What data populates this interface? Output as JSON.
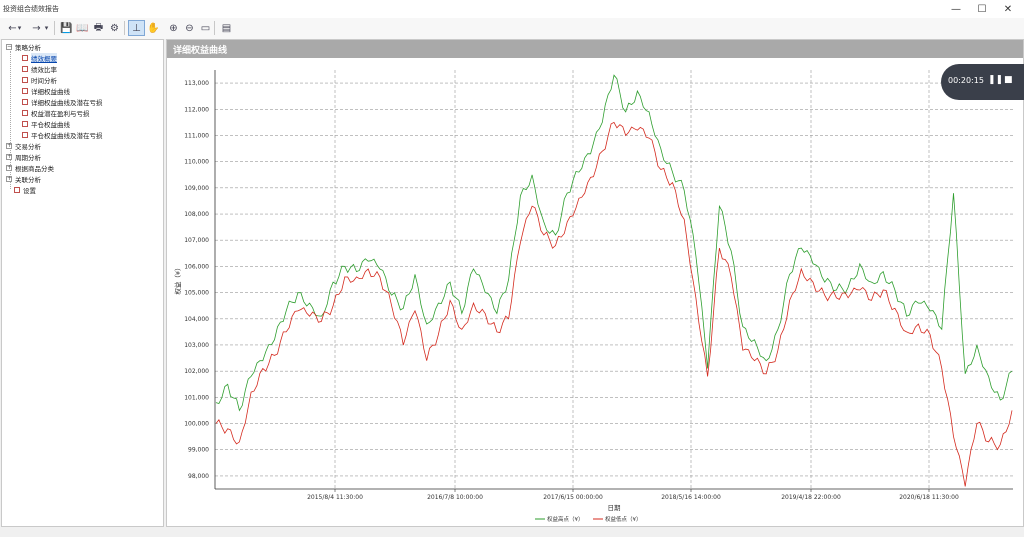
{
  "window": {
    "title": "投资组合绩效报告"
  },
  "titlebar_controls": {
    "minimize": "—",
    "maximize": "☐",
    "close": "✕"
  },
  "toolbar": [
    {
      "name": "back-icon",
      "glyph": "←"
    },
    {
      "name": "back-dropdown-icon",
      "glyph": "▾"
    },
    {
      "name": "forward-icon",
      "glyph": "→"
    },
    {
      "name": "forward-dropdown-icon",
      "glyph": "▾"
    },
    {
      "name": "save-icon",
      "glyph": "💾"
    },
    {
      "name": "open-icon",
      "glyph": "📖"
    },
    {
      "name": "print-icon",
      "glyph": "🖶"
    },
    {
      "name": "settings-icon",
      "glyph": "⚙"
    },
    {
      "name": "cursor-crosshair-icon",
      "glyph": "⊥",
      "active": true
    },
    {
      "name": "pan-hand-icon",
      "glyph": "✋"
    },
    {
      "name": "zoom-in-icon",
      "glyph": "⊕"
    },
    {
      "name": "zoom-out-icon",
      "glyph": "⊖"
    },
    {
      "name": "fit-page-icon",
      "glyph": "▭"
    },
    {
      "name": "export-image-icon",
      "glyph": "▤"
    }
  ],
  "tree": [
    {
      "label": "策略分析",
      "level": 0,
      "type": "group",
      "expanded": true
    },
    {
      "label": "绩效概要",
      "level": 1,
      "type": "doc",
      "selected": true
    },
    {
      "label": "绩效比率",
      "level": 1,
      "type": "doc"
    },
    {
      "label": "时间分析",
      "level": 1,
      "type": "doc"
    },
    {
      "label": "详细权益曲线",
      "level": 1,
      "type": "doc"
    },
    {
      "label": "详细权益曲线及潜在亏损",
      "level": 1,
      "type": "doc"
    },
    {
      "label": "权益潜在盈利与亏损",
      "level": 1,
      "type": "doc"
    },
    {
      "label": "平仓权益曲线",
      "level": 1,
      "type": "doc"
    },
    {
      "label": "平仓权益曲线及潜在亏损",
      "level": 1,
      "type": "doc"
    },
    {
      "label": "交易分析",
      "level": 0,
      "type": "group",
      "expanded": false
    },
    {
      "label": "周期分析",
      "level": 0,
      "type": "group",
      "expanded": false
    },
    {
      "label": "根据商品分类",
      "level": 0,
      "type": "group",
      "expanded": false
    },
    {
      "label": "关联分析",
      "level": 0,
      "type": "group",
      "expanded": false
    },
    {
      "label": "设置",
      "level": 0,
      "type": "doc"
    }
  ],
  "panel": {
    "title": "详细权益曲线"
  },
  "timer": {
    "time": "00:20:15",
    "pause": "❚❚",
    "stop": "■"
  },
  "chart_data": {
    "type": "line",
    "title": "",
    "xlabel": "日期",
    "ylabel": "权益（¥）",
    "ylim": [
      97500,
      113500
    ],
    "y_ticks": [
      98000,
      99000,
      100000,
      101000,
      102000,
      103000,
      104000,
      105000,
      106000,
      107000,
      108000,
      109000,
      110000,
      111000,
      112000,
      113000
    ],
    "y_tick_labels": [
      "98,000",
      "99,000",
      "100,000",
      "101,000",
      "102,000",
      "103,000",
      "104,000",
      "105,000",
      "106,000",
      "107,000",
      "108,000",
      "109,000",
      "110,000",
      "111,000",
      "112,000",
      "113,000"
    ],
    "x_tick_labels": [
      "2015/8/4 11:30:00",
      "2016/7/8 10:00:00",
      "2017/6/15 00:00:00",
      "2018/5/16 14:00:00",
      "2019/4/18 22:00:00",
      "2020/6/18 11:30:00"
    ],
    "grid": true,
    "legend_position": "bottom",
    "series": [
      {
        "name": "权益高点（¥）",
        "color": "#2e9e2e",
        "values": [
          100800,
          101500,
          100500,
          101800,
          102400,
          103200,
          104300,
          105000,
          104600,
          104100,
          105400,
          106000,
          105800,
          106200,
          105900,
          104900,
          104400,
          105700,
          103800,
          104600,
          105400,
          104200,
          105900,
          105000,
          104200,
          105500,
          108700,
          109500,
          107700,
          107200,
          108800,
          109600,
          110300,
          111500,
          113300,
          111900,
          112700,
          111900,
          110500,
          109600,
          108900,
          106400,
          102100,
          108300,
          106600,
          103700,
          103200,
          102400,
          103600,
          105700,
          106700,
          106100,
          105400,
          105100,
          105200,
          106100,
          105400,
          105800,
          105100,
          104100,
          104600,
          104300,
          103600,
          108800,
          101900,
          103000,
          101800,
          100900,
          102000
        ]
      },
      {
        "name": "权益低点（¥）",
        "color": "#d42a1e",
        "values": [
          100000,
          99800,
          99300,
          101200,
          102100,
          102600,
          103500,
          104300,
          104100,
          103900,
          104500,
          105600,
          105600,
          105900,
          105600,
          104500,
          103000,
          104300,
          102400,
          103400,
          104700,
          103600,
          104600,
          104200,
          103500,
          104000,
          106900,
          108300,
          107200,
          106800,
          107700,
          108600,
          109400,
          110400,
          111500,
          111000,
          111200,
          110900,
          109700,
          109200,
          107800,
          104800,
          101800,
          106700,
          105600,
          102800,
          102400,
          101900,
          102800,
          104700,
          105900,
          105400,
          104900,
          104800,
          104800,
          105100,
          104700,
          105100,
          104400,
          103500,
          103800,
          103400,
          102100,
          99500,
          97600,
          100000,
          99300,
          99200,
          100500
        ]
      }
    ]
  }
}
